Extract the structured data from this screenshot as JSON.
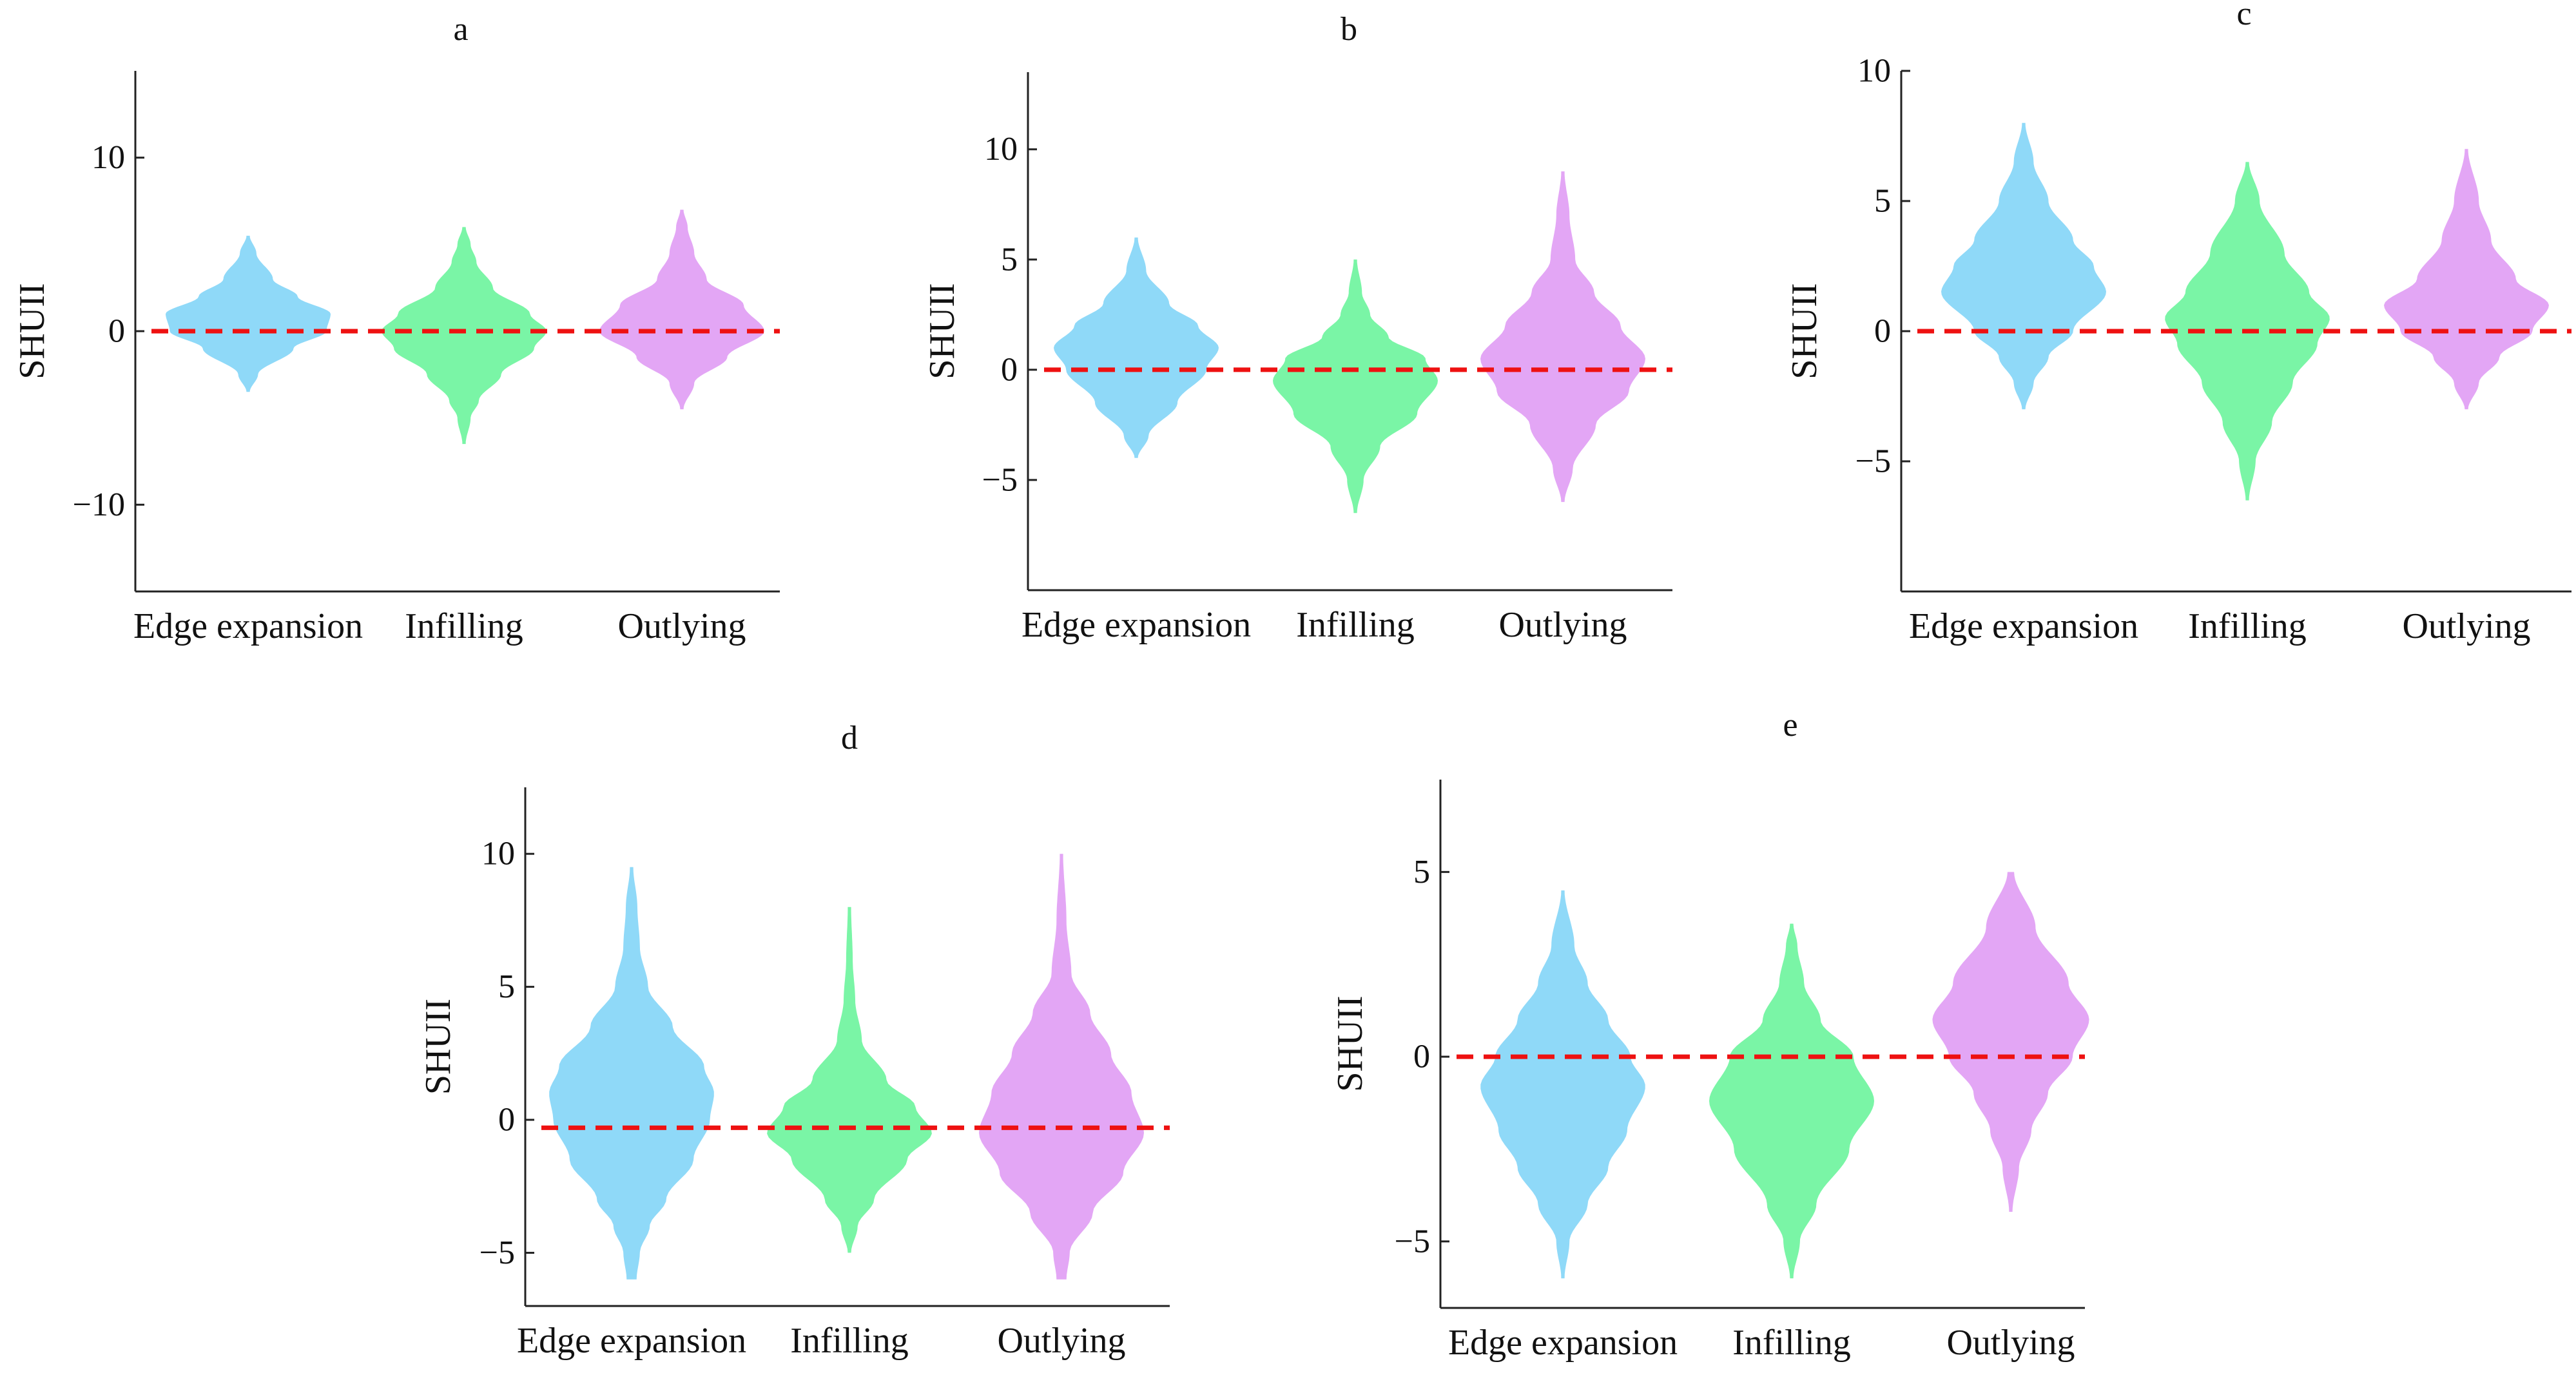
{
  "figure": {
    "colors": {
      "edge": "#8fd9f8",
      "infill": "#7af5a6",
      "outlying": "#e3a6f5",
      "zero_line": "#ee1111",
      "axis": "#222222"
    }
  },
  "chart_data": [
    {
      "panel": "a",
      "type": "violin",
      "title": "a",
      "ylabel": "SHUII",
      "xlabel": "",
      "categories": [
        "Edge expansion",
        "Infilling",
        "Outlying"
      ],
      "ylim": [
        -15,
        15
      ],
      "yticks": [
        10,
        0,
        -10
      ],
      "ytick_labels": [
        "10",
        "0",
        "−10"
      ],
      "reference_line": 0,
      "series": [
        {
          "name": "Edge expansion",
          "color": "#8fd9f8",
          "range": [
            -3.5,
            5.5
          ],
          "density": [
            [
              -3.5,
              0.02
            ],
            [
              -2.5,
              0.12
            ],
            [
              -1,
              0.55
            ],
            [
              0,
              0.95
            ],
            [
              1,
              1.0
            ],
            [
              2,
              0.6
            ],
            [
              3,
              0.3
            ],
            [
              4.5,
              0.1
            ],
            [
              5.5,
              0.02
            ]
          ]
        },
        {
          "name": "Infilling",
          "color": "#7af5a6",
          "range": [
            -6.5,
            6
          ],
          "density": [
            [
              -6.5,
              0.02
            ],
            [
              -5,
              0.08
            ],
            [
              -4,
              0.18
            ],
            [
              -2.5,
              0.45
            ],
            [
              -1,
              0.85
            ],
            [
              0,
              1.0
            ],
            [
              1,
              0.8
            ],
            [
              2.5,
              0.35
            ],
            [
              4,
              0.15
            ],
            [
              5,
              0.08
            ],
            [
              6,
              0.02
            ]
          ]
        },
        {
          "name": "Outlying",
          "color": "#e3a6f5",
          "range": [
            -4.5,
            7
          ],
          "density": [
            [
              -4.5,
              0.02
            ],
            [
              -3,
              0.15
            ],
            [
              -1.5,
              0.55
            ],
            [
              0,
              1.0
            ],
            [
              1.5,
              0.75
            ],
            [
              3,
              0.3
            ],
            [
              4.5,
              0.15
            ],
            [
              6,
              0.07
            ],
            [
              7,
              0.02
            ]
          ]
        }
      ]
    },
    {
      "panel": "b",
      "type": "violin",
      "title": "b",
      "ylabel": "SHUII",
      "xlabel": "",
      "categories": [
        "Edge expansion",
        "Infilling",
        "Outlying"
      ],
      "ylim": [
        -10,
        13.5
      ],
      "yticks": [
        10,
        5,
        0,
        -5
      ],
      "ytick_labels": [
        "10",
        "5",
        "0",
        "−5"
      ],
      "reference_line": 0,
      "series": [
        {
          "name": "Edge expansion",
          "color": "#8fd9f8",
          "range": [
            -4,
            6
          ],
          "density": [
            [
              -4,
              0.02
            ],
            [
              -3,
              0.15
            ],
            [
              -1.5,
              0.5
            ],
            [
              0,
              0.85
            ],
            [
              1,
              1.0
            ],
            [
              2,
              0.75
            ],
            [
              3,
              0.4
            ],
            [
              4.5,
              0.12
            ],
            [
              6,
              0.02
            ]
          ]
        },
        {
          "name": "Infilling",
          "color": "#7af5a6",
          "range": [
            -6.5,
            5
          ],
          "density": [
            [
              -6.5,
              0.02
            ],
            [
              -5,
              0.1
            ],
            [
              -3.5,
              0.3
            ],
            [
              -2,
              0.75
            ],
            [
              -0.5,
              1.0
            ],
            [
              0.5,
              0.85
            ],
            [
              1.5,
              0.4
            ],
            [
              2.5,
              0.18
            ],
            [
              3.5,
              0.08
            ],
            [
              5,
              0.02
            ]
          ]
        },
        {
          "name": "Outlying",
          "color": "#e3a6f5",
          "range": [
            -6,
            9
          ],
          "density": [
            [
              -6,
              0.02
            ],
            [
              -4.5,
              0.12
            ],
            [
              -2.5,
              0.4
            ],
            [
              -1,
              0.8
            ],
            [
              0.5,
              1.0
            ],
            [
              2,
              0.7
            ],
            [
              3.5,
              0.38
            ],
            [
              5,
              0.15
            ],
            [
              7,
              0.08
            ],
            [
              9,
              0.02
            ]
          ]
        }
      ]
    },
    {
      "panel": "c",
      "type": "violin",
      "title": "c",
      "ylabel": "SHUII",
      "xlabel": "",
      "categories": [
        "Edge expansion",
        "Infilling",
        "Outlying"
      ],
      "ylim": [
        -10,
        10
      ],
      "yticks": [
        10,
        5,
        0,
        -5
      ],
      "ytick_labels": [
        "10",
        "5",
        "0",
        "−5"
      ],
      "reference_line": 0,
      "series": [
        {
          "name": "Edge expansion",
          "color": "#8fd9f8",
          "range": [
            -3,
            8
          ],
          "density": [
            [
              -3,
              0.02
            ],
            [
              -2,
              0.12
            ],
            [
              -1,
              0.3
            ],
            [
              0,
              0.6
            ],
            [
              1.5,
              1.0
            ],
            [
              2.5,
              0.85
            ],
            [
              3.5,
              0.6
            ],
            [
              5,
              0.3
            ],
            [
              6.5,
              0.12
            ],
            [
              8,
              0.02
            ]
          ]
        },
        {
          "name": "Infilling",
          "color": "#7af5a6",
          "range": [
            -6.5,
            6.5
          ],
          "density": [
            [
              -6.5,
              0.02
            ],
            [
              -5,
              0.1
            ],
            [
              -3.5,
              0.3
            ],
            [
              -2,
              0.55
            ],
            [
              -0.5,
              0.85
            ],
            [
              0.5,
              1.0
            ],
            [
              1.5,
              0.75
            ],
            [
              3,
              0.45
            ],
            [
              5,
              0.15
            ],
            [
              6.5,
              0.02
            ]
          ]
        },
        {
          "name": "Outlying",
          "color": "#e3a6f5",
          "range": [
            -3,
            7
          ],
          "density": [
            [
              -3,
              0.02
            ],
            [
              -2,
              0.15
            ],
            [
              -1,
              0.4
            ],
            [
              0,
              0.8
            ],
            [
              1,
              1.0
            ],
            [
              2,
              0.6
            ],
            [
              3.5,
              0.3
            ],
            [
              5,
              0.15
            ],
            [
              7,
              0.02
            ]
          ]
        }
      ]
    },
    {
      "panel": "d",
      "type": "violin",
      "title": "d",
      "ylabel": "SHUII",
      "xlabel": "",
      "categories": [
        "Edge expansion",
        "Infilling",
        "Outlying"
      ],
      "ylim": [
        -7,
        12.5
      ],
      "yticks": [
        10,
        5,
        0,
        -5
      ],
      "ytick_labels": [
        "10",
        "5",
        "0",
        "−5"
      ],
      "reference_line": -0.3,
      "series": [
        {
          "name": "Edge expansion",
          "color": "#8fd9f8",
          "range": [
            -6,
            9.5
          ],
          "density": [
            [
              -6,
              0.06
            ],
            [
              -5,
              0.1
            ],
            [
              -4,
              0.22
            ],
            [
              -3,
              0.42
            ],
            [
              -1.5,
              0.75
            ],
            [
              0,
              0.95
            ],
            [
              1,
              1.0
            ],
            [
              2,
              0.88
            ],
            [
              3.5,
              0.5
            ],
            [
              5,
              0.2
            ],
            [
              6.5,
              0.1
            ],
            [
              8,
              0.07
            ],
            [
              9.5,
              0.02
            ]
          ]
        },
        {
          "name": "Infilling",
          "color": "#7af5a6",
          "range": [
            -5,
            8
          ],
          "density": [
            [
              -5,
              0.02
            ],
            [
              -4,
              0.1
            ],
            [
              -3,
              0.3
            ],
            [
              -1.5,
              0.7
            ],
            [
              -0.5,
              1.0
            ],
            [
              0.5,
              0.8
            ],
            [
              1.5,
              0.45
            ],
            [
              3,
              0.15
            ],
            [
              4.5,
              0.07
            ],
            [
              6,
              0.04
            ],
            [
              8,
              0.02
            ]
          ]
        },
        {
          "name": "Outlying",
          "color": "#e3a6f5",
          "range": [
            -6,
            10
          ],
          "density": [
            [
              -6,
              0.06
            ],
            [
              -5,
              0.1
            ],
            [
              -3.5,
              0.38
            ],
            [
              -2,
              0.75
            ],
            [
              -0.5,
              1.0
            ],
            [
              1,
              0.85
            ],
            [
              2.5,
              0.6
            ],
            [
              4,
              0.35
            ],
            [
              5.5,
              0.12
            ],
            [
              7.5,
              0.06
            ],
            [
              10,
              0.02
            ]
          ]
        }
      ]
    },
    {
      "panel": "e",
      "type": "violin",
      "title": "e",
      "ylabel": "SHUII",
      "xlabel": "",
      "categories": [
        "Edge expansion",
        "Infilling",
        "Outlying"
      ],
      "ylim": [
        -6.8,
        7.5
      ],
      "yticks": [
        5,
        0,
        -5
      ],
      "ytick_labels": [
        "5",
        "0",
        "−5"
      ],
      "reference_line": 0,
      "series": [
        {
          "name": "Edge expansion",
          "color": "#8fd9f8",
          "range": [
            -6,
            4.5
          ],
          "density": [
            [
              -6,
              0.02
            ],
            [
              -5,
              0.08
            ],
            [
              -4,
              0.3
            ],
            [
              -3,
              0.55
            ],
            [
              -2,
              0.78
            ],
            [
              -0.8,
              1.0
            ],
            [
              0,
              0.82
            ],
            [
              1,
              0.55
            ],
            [
              2,
              0.3
            ],
            [
              3,
              0.14
            ],
            [
              4.5,
              0.02
            ]
          ]
        },
        {
          "name": "Infilling",
          "color": "#7af5a6",
          "range": [
            -6,
            3.6
          ],
          "density": [
            [
              -6,
              0.02
            ],
            [
              -5,
              0.1
            ],
            [
              -4,
              0.3
            ],
            [
              -2.5,
              0.7
            ],
            [
              -1.2,
              1.0
            ],
            [
              0,
              0.75
            ],
            [
              1,
              0.35
            ],
            [
              2,
              0.15
            ],
            [
              3,
              0.07
            ],
            [
              3.6,
              0.02
            ]
          ]
        },
        {
          "name": "Outlying",
          "color": "#e3a6f5",
          "range": [
            -4.2,
            5
          ],
          "density": [
            [
              -4.2,
              0.02
            ],
            [
              -3,
              0.1
            ],
            [
              -2,
              0.25
            ],
            [
              -1,
              0.45
            ],
            [
              0,
              0.75
            ],
            [
              1,
              0.95
            ],
            [
              2,
              0.7
            ],
            [
              3.5,
              0.3
            ],
            [
              5,
              0.04
            ]
          ]
        }
      ]
    }
  ]
}
